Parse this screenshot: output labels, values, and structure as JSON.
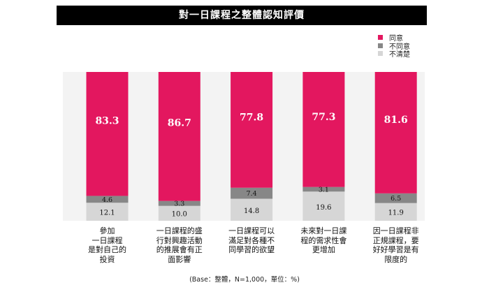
{
  "chart_data": {
    "type": "bar",
    "stacked": true,
    "title": "對一日課程之整體認知評價",
    "categories": [
      "參加\n一日課程\n是對自己的\n投資",
      "一日課程的盛\n行對興趣活動\n的推展會有正\n面影響",
      "一日課程可以\n滿足對各種不\n同學習的欲望",
      "未來對一日課\n程的需求性會\n更增加",
      "因一日課程非\n正規課程，要\n好好學習是有\n限度的"
    ],
    "series": [
      {
        "name": "同意",
        "color": "#e3175f",
        "values": [
          83.3,
          86.7,
          77.8,
          77.3,
          81.6
        ]
      },
      {
        "name": "不同意",
        "color": "#878787",
        "values": [
          4.6,
          3.3,
          7.4,
          3.1,
          6.5
        ]
      },
      {
        "name": "不清楚",
        "color": "#d6d6d6",
        "values": [
          12.1,
          10.0,
          14.8,
          19.6,
          11.9
        ]
      }
    ],
    "value_labels": [
      [
        "83.3",
        "86.7",
        "77.8",
        "77.3",
        "81.6"
      ],
      [
        "4.6",
        "3.3",
        "7.4",
        "3.1",
        "6.5"
      ],
      [
        "12.1",
        "10.0",
        "14.8",
        "19.6",
        "11.9"
      ]
    ],
    "ylim": [
      0,
      100
    ],
    "legend_position": "top-right",
    "footnote": "(Base：整體，N=1,000，單位：%)"
  }
}
